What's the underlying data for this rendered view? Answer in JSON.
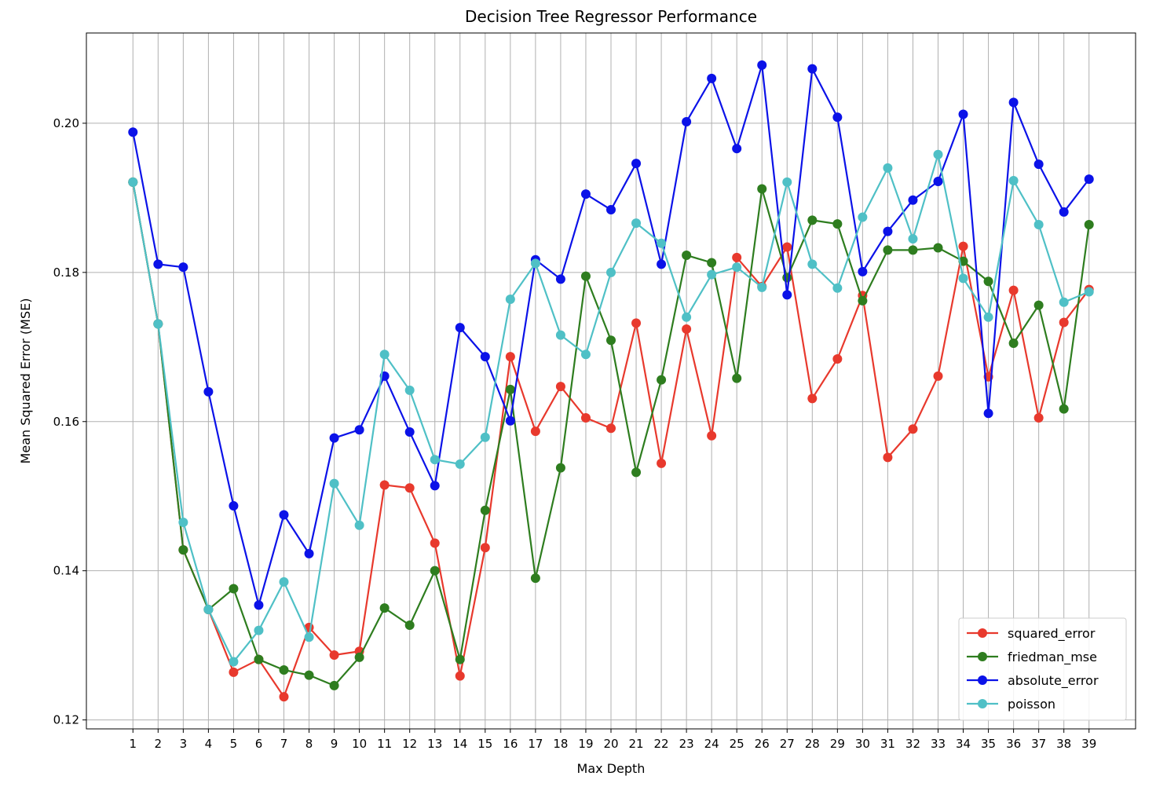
{
  "chart_data": {
    "type": "line",
    "title": "Decision Tree Regressor Performance",
    "xlabel": "Max Depth",
    "ylabel": "Mean Squared Error (MSE)",
    "x": [
      1,
      2,
      3,
      4,
      5,
      6,
      7,
      8,
      9,
      10,
      11,
      12,
      13,
      14,
      15,
      16,
      17,
      18,
      19,
      20,
      21,
      22,
      23,
      24,
      25,
      26,
      27,
      28,
      29,
      30,
      31,
      32,
      33,
      34,
      35,
      36,
      37,
      38,
      39
    ],
    "xlim": [
      -0.85,
      40.85
    ],
    "ylim": [
      0.1188,
      0.2121
    ],
    "yticks": [
      0.12,
      0.14,
      0.16,
      0.18,
      0.2
    ],
    "ytick_labels": [
      "0.12",
      "0.14",
      "0.16",
      "0.18",
      "0.20"
    ],
    "grid": true,
    "legend_position": "lower right",
    "series": [
      {
        "name": "squared_error",
        "color": "#e8392d",
        "values": [
          0.1921,
          0.1731,
          0.1428,
          0.1348,
          0.1264,
          0.1281,
          0.1231,
          0.1324,
          0.1287,
          0.1292,
          0.1515,
          0.1511,
          0.1437,
          0.1259,
          0.1431,
          0.1687,
          0.1587,
          0.1647,
          0.1605,
          0.1591,
          0.1732,
          0.1544,
          0.1724,
          0.1581,
          0.182,
          0.1781,
          0.1834,
          0.1631,
          0.1684,
          0.1769,
          0.1552,
          0.159,
          0.1661,
          0.1835,
          0.166,
          0.1776,
          0.1605,
          0.1733,
          0.1777
        ]
      },
      {
        "name": "friedman_mse",
        "color": "#2e7d1f",
        "values": [
          0.1921,
          0.1731,
          0.1428,
          0.1348,
          0.1376,
          0.1281,
          0.1267,
          0.126,
          0.1246,
          0.1284,
          0.135,
          0.1327,
          0.14,
          0.1281,
          0.1481,
          0.1643,
          0.139,
          0.1538,
          0.1795,
          0.1709,
          0.1532,
          0.1656,
          0.1823,
          0.1813,
          0.1658,
          0.1912,
          0.1793,
          0.187,
          0.1865,
          0.1762,
          0.183,
          0.183,
          0.1833,
          0.1815,
          0.1788,
          0.1705,
          0.1756,
          0.1617,
          0.1864
        ]
      },
      {
        "name": "absolute_error",
        "color": "#0b12e8",
        "values": [
          0.1988,
          0.1811,
          0.1807,
          0.164,
          0.1487,
          0.1354,
          0.1475,
          0.1423,
          0.1578,
          0.1589,
          0.1661,
          0.1586,
          0.1514,
          0.1726,
          0.1687,
          0.1601,
          0.1817,
          0.1791,
          0.1905,
          0.1884,
          0.1946,
          0.1811,
          0.2002,
          0.206,
          0.1966,
          0.2078,
          0.177,
          0.2073,
          0.2008,
          0.1801,
          0.1855,
          0.1897,
          0.1922,
          0.2012,
          0.1611,
          0.2028,
          0.1945,
          0.1881,
          0.1925
        ]
      },
      {
        "name": "poisson",
        "color": "#4fc0c6",
        "values": [
          0.1921,
          0.1731,
          0.1465,
          0.1348,
          0.1278,
          0.132,
          0.1385,
          0.1311,
          0.1517,
          0.1461,
          0.169,
          0.1642,
          0.1549,
          0.1543,
          0.1579,
          0.1764,
          0.1812,
          0.1716,
          0.169,
          0.18,
          0.1866,
          0.1839,
          0.174,
          0.1797,
          0.1807,
          0.178,
          0.1921,
          0.1811,
          0.1779,
          0.1874,
          0.194,
          0.1845,
          0.1958,
          0.1792,
          0.174,
          0.1923,
          0.1864,
          0.176,
          0.1774
        ]
      }
    ]
  }
}
